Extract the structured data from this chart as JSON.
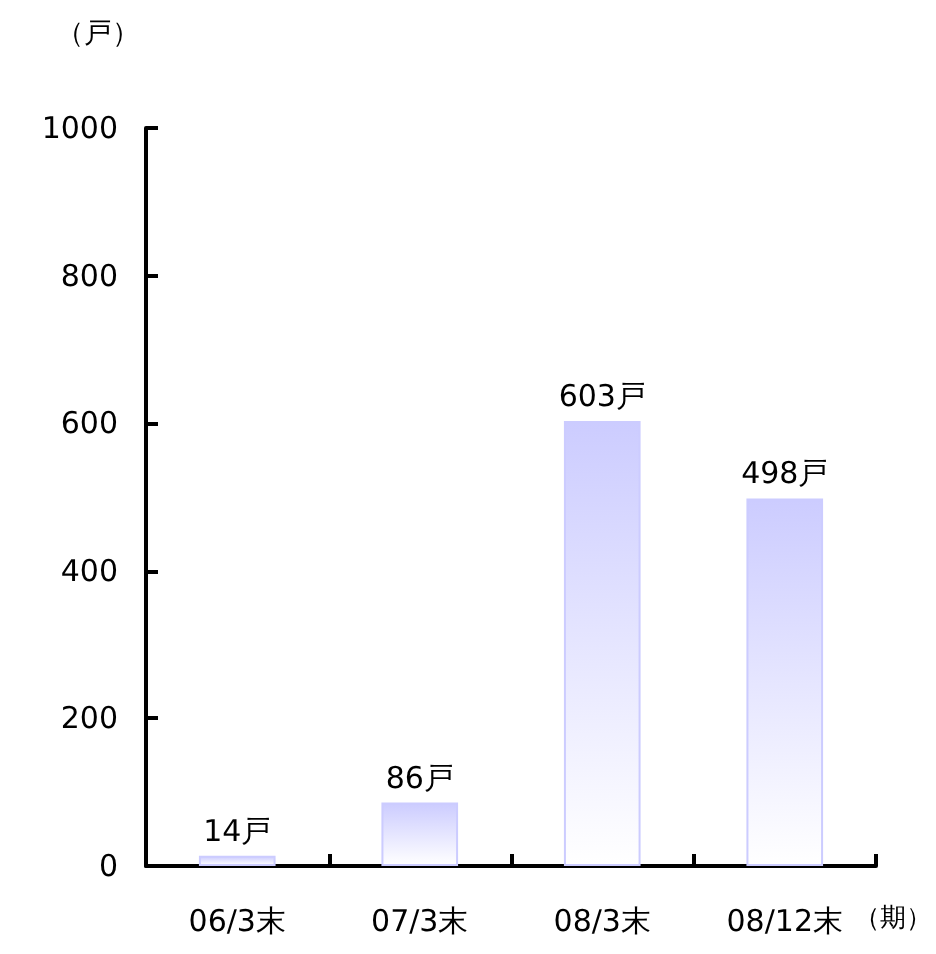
{
  "chart_data": {
    "type": "bar",
    "ylabel": "（戸）",
    "xlabel": "（期）",
    "categories": [
      "06/3末",
      "07/3末",
      "08/3末",
      "08/12末"
    ],
    "values": [
      14,
      86,
      603,
      498
    ],
    "value_labels": [
      "14戸",
      "86戸",
      "603戸",
      "498戸"
    ],
    "color": "#ccccff",
    "ylim": [
      0,
      1000
    ],
    "yticks": [
      0,
      200,
      400,
      600,
      800,
      1000
    ],
    "grid": false
  }
}
